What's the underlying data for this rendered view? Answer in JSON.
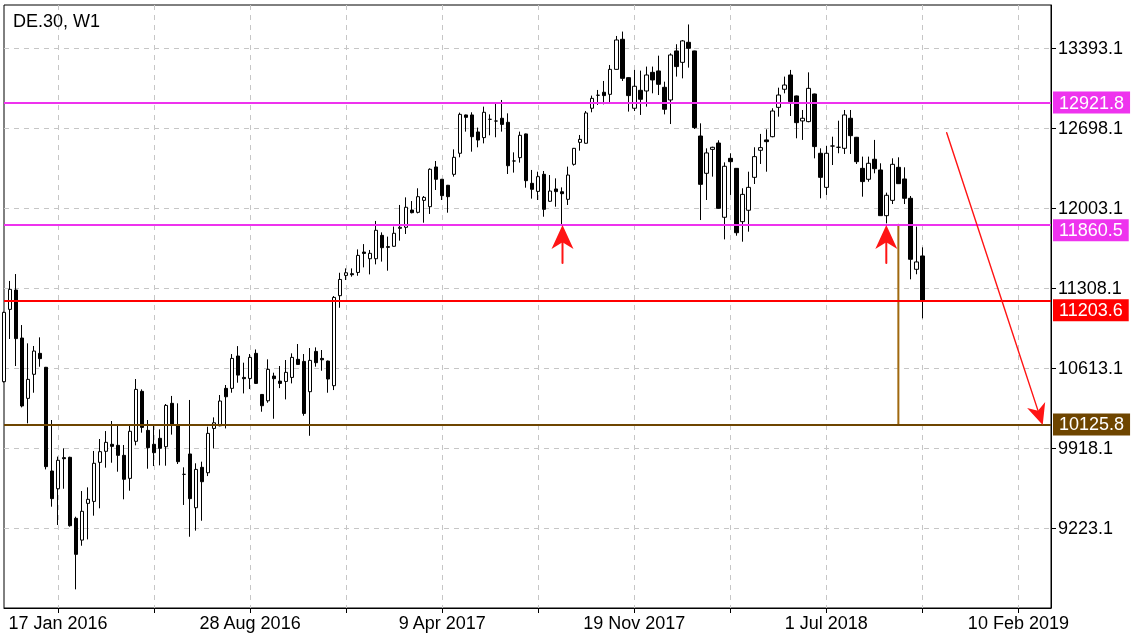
{
  "chart_data": {
    "type": "candlestick",
    "title": "DE.30, W1",
    "color": "#000000",
    "x": [
      "2015-11-15",
      "2015-11-22",
      "2015-11-29",
      "2015-12-06",
      "2015-12-13",
      "2015-12-20",
      "2015-12-27",
      "2016-01-03",
      "2016-01-10",
      "2016-01-17",
      "2016-01-24",
      "2016-01-31",
      "2016-02-07",
      "2016-02-14",
      "2016-02-21",
      "2016-02-28",
      "2016-03-06",
      "2016-03-13",
      "2016-03-20",
      "2016-03-27",
      "2016-04-03",
      "2016-04-10",
      "2016-04-17",
      "2016-04-24",
      "2016-05-01",
      "2016-05-08",
      "2016-05-15",
      "2016-05-22",
      "2016-05-29",
      "2016-06-05",
      "2016-06-12",
      "2016-06-19",
      "2016-06-26",
      "2016-07-03",
      "2016-07-10",
      "2016-07-17",
      "2016-07-24",
      "2016-07-31",
      "2016-08-07",
      "2016-08-14",
      "2016-08-21",
      "2016-08-28",
      "2016-09-04",
      "2016-09-11",
      "2016-09-18",
      "2016-09-25",
      "2016-10-02",
      "2016-10-09",
      "2016-10-16",
      "2016-10-23",
      "2016-10-30",
      "2016-11-06",
      "2016-11-13",
      "2016-11-20",
      "2016-11-27",
      "2016-12-04",
      "2016-12-11",
      "2016-12-18",
      "2016-12-25",
      "2017-01-01",
      "2017-01-08",
      "2017-01-15",
      "2017-01-22",
      "2017-01-29",
      "2017-02-05",
      "2017-02-12",
      "2017-02-19",
      "2017-02-26",
      "2017-03-05",
      "2017-03-12",
      "2017-03-19",
      "2017-03-26",
      "2017-04-02",
      "2017-04-09",
      "2017-04-16",
      "2017-04-23",
      "2017-04-30",
      "2017-05-07",
      "2017-05-14",
      "2017-05-21",
      "2017-05-28",
      "2017-06-04",
      "2017-06-11",
      "2017-06-18",
      "2017-06-25",
      "2017-07-02",
      "2017-07-09",
      "2017-07-16",
      "2017-07-23",
      "2017-07-30",
      "2017-08-06",
      "2017-08-13",
      "2017-08-20",
      "2017-08-27",
      "2017-09-03",
      "2017-09-10",
      "2017-09-17",
      "2017-09-24",
      "2017-10-01",
      "2017-10-08",
      "2017-10-15",
      "2017-10-22",
      "2017-10-29",
      "2017-11-05",
      "2017-11-12",
      "2017-11-19",
      "2017-11-26",
      "2017-12-03",
      "2017-12-10",
      "2017-12-17",
      "2017-12-24",
      "2017-12-31",
      "2018-01-07",
      "2018-01-14",
      "2018-01-21",
      "2018-01-28",
      "2018-02-04",
      "2018-02-11",
      "2018-02-18",
      "2018-02-25",
      "2018-03-04",
      "2018-03-11",
      "2018-03-18",
      "2018-03-25",
      "2018-04-01",
      "2018-04-08",
      "2018-04-15",
      "2018-04-22",
      "2018-04-29",
      "2018-05-06",
      "2018-05-13",
      "2018-05-20",
      "2018-05-27",
      "2018-06-03",
      "2018-06-10",
      "2018-06-17",
      "2018-06-24",
      "2018-07-01",
      "2018-07-08",
      "2018-07-15",
      "2018-07-22",
      "2018-07-29",
      "2018-08-05",
      "2018-08-12",
      "2018-08-19",
      "2018-08-26",
      "2018-09-02",
      "2018-09-09",
      "2018-09-16",
      "2018-09-23",
      "2018-09-30",
      "2018-10-07",
      "2018-10-14",
      "2018-10-21"
    ],
    "ohlc": [
      [
        10497,
        11105,
        10490,
        11099
      ],
      [
        11125,
        11372,
        10868,
        11299
      ],
      [
        11293,
        11432,
        10633,
        10871
      ],
      [
        10876,
        10989,
        10274,
        10286
      ],
      [
        10352,
        10830,
        10135,
        10517
      ],
      [
        10561,
        10807,
        10401,
        10763
      ],
      [
        10743,
        10882,
        10627,
        10697
      ],
      [
        10622,
        10625,
        9735,
        9759
      ],
      [
        9721,
        10164,
        9411,
        9481
      ],
      [
        9567,
        9846,
        9252,
        9814
      ],
      [
        9837,
        9918,
        9567,
        9828
      ],
      [
        9840,
        9845,
        9238,
        9246
      ],
      [
        9310,
        9324,
        8693,
        8997
      ],
      [
        9121,
        9547,
        9072,
        9371
      ],
      [
        9440,
        9579,
        9127,
        9475
      ],
      [
        9457,
        9895,
        9333,
        9788
      ],
      [
        9796,
        9999,
        9397,
        9889
      ],
      [
        9892,
        10068,
        9750,
        9970
      ],
      [
        9953,
        10155,
        9793,
        9935
      ],
      [
        9944,
        10121,
        9715,
        9857
      ],
      [
        9857,
        9947,
        9475,
        9649
      ],
      [
        9657,
        10112,
        9550,
        10066
      ],
      [
        9979,
        10520,
        9944,
        10430
      ],
      [
        10413,
        10430,
        10054,
        10100
      ],
      [
        10074,
        10164,
        9741,
        9924
      ],
      [
        9953,
        10115,
        9764,
        9880
      ],
      [
        10005,
        10083,
        9770,
        9918
      ],
      [
        9932,
        10303,
        9767,
        10291
      ],
      [
        10309,
        10373,
        10037,
        10118
      ],
      [
        10123,
        10309,
        9782,
        9802
      ],
      [
        9692,
        9753,
        9426,
        9692
      ],
      [
        9869,
        10338,
        9150,
        9481
      ],
      [
        9402,
        9788,
        9203,
        9735
      ],
      [
        9753,
        9802,
        9289,
        9628
      ],
      [
        9706,
        10106,
        9677,
        10048
      ],
      [
        10091,
        10187,
        9917,
        10140
      ],
      [
        10114,
        10381,
        10110,
        10329
      ],
      [
        10439,
        10468,
        10091,
        10366
      ],
      [
        10439,
        10737,
        10401,
        10699
      ],
      [
        10720,
        10806,
        10488,
        10554
      ],
      [
        10534,
        10662,
        10395,
        10523
      ],
      [
        10525,
        10737,
        10433,
        10708
      ],
      [
        10743,
        10777,
        10478,
        10482
      ],
      [
        10386,
        10390,
        10236,
        10288
      ],
      [
        10331,
        10691,
        10314,
        10604
      ],
      [
        10546,
        10575,
        10175,
        10523
      ],
      [
        10502,
        10633,
        10441,
        10482
      ],
      [
        10499,
        10685,
        10343,
        10578
      ],
      [
        10534,
        10743,
        10482,
        10708
      ],
      [
        10691,
        10824,
        10645,
        10647
      ],
      [
        10673,
        10737,
        10201,
        10221
      ],
      [
        10410,
        10789,
        10027,
        10682
      ],
      [
        10760,
        10795,
        10627,
        10662
      ],
      [
        10699,
        10772,
        10592,
        10687
      ],
      [
        10676,
        10680,
        10401,
        10520
      ],
      [
        10462,
        11241,
        10424,
        11229
      ],
      [
        11244,
        11443,
        11139,
        11385
      ],
      [
        11420,
        11481,
        11380,
        11443
      ],
      [
        11435,
        11481,
        11409,
        11426
      ],
      [
        11446,
        11646,
        11417,
        11594
      ],
      [
        11623,
        11692,
        11490,
        11611
      ],
      [
        11565,
        11641,
        11429,
        11612
      ],
      [
        11565,
        11893,
        11516,
        11812
      ],
      [
        11768,
        11794,
        11540,
        11661
      ],
      [
        11670,
        11757,
        11461,
        11664
      ],
      [
        11673,
        11844,
        11670,
        11786
      ],
      [
        11829,
        12032,
        11722,
        11838
      ],
      [
        11838,
        12098,
        11780,
        12012
      ],
      [
        11988,
        12066,
        11959,
        11965
      ],
      [
        11968,
        12177,
        11959,
        12104
      ],
      [
        12072,
        12110,
        11878,
        12098
      ],
      [
        12017,
        12350,
        11954,
        12342
      ],
      [
        12362,
        12414,
        12162,
        12255
      ],
      [
        12255,
        12258,
        12075,
        12113
      ],
      [
        12203,
        12206,
        11965,
        12104
      ],
      [
        12298,
        12515,
        12278,
        12446
      ],
      [
        12481,
        12834,
        12446,
        12819
      ],
      [
        12814,
        12817,
        12669,
        12793
      ],
      [
        12814,
        12837,
        12495,
        12625
      ],
      [
        12666,
        12704,
        12533,
        12596
      ],
      [
        12617,
        12886,
        12567,
        12837
      ],
      [
        12776,
        12819,
        12637,
        12776
      ],
      [
        12761,
        12921,
        12620,
        12761
      ],
      [
        12785,
        12944,
        12669,
        12732
      ],
      [
        12750,
        12828,
        12301,
        12373
      ],
      [
        12414,
        12489,
        12313,
        12414
      ],
      [
        12443,
        12669,
        12400,
        12637
      ],
      [
        12649,
        12652,
        12182,
        12243
      ],
      [
        12220,
        12336,
        12087,
        12168
      ],
      [
        12150,
        12321,
        12075,
        12278
      ],
      [
        12298,
        12327,
        11930,
        11994
      ],
      [
        12064,
        12292,
        12060,
        12153
      ],
      [
        12171,
        12263,
        12017,
        12148
      ],
      [
        12147,
        12185,
        11864,
        12130
      ],
      [
        12081,
        12365,
        12032,
        12292
      ],
      [
        12385,
        12527,
        12374,
        12524
      ],
      [
        12576,
        12640,
        12504,
        12602
      ],
      [
        12568,
        12848,
        12566,
        12831
      ],
      [
        12872,
        12982,
        12837,
        12958
      ],
      [
        12985,
        13031,
        12901,
        12985
      ],
      [
        13011,
        13109,
        12906,
        12982
      ],
      [
        12993,
        13248,
        12915,
        13210
      ],
      [
        13210,
        13500,
        13208,
        13465
      ],
      [
        13471,
        13538,
        13109,
        13132
      ],
      [
        13138,
        13141,
        12843,
        12982
      ],
      [
        12872,
        13205,
        12848,
        13063
      ],
      [
        13028,
        13199,
        12814,
        12950
      ],
      [
        13022,
        13234,
        12886,
        13161
      ],
      [
        13184,
        13234,
        13002,
        13118
      ],
      [
        13196,
        13329,
        12987,
        13080
      ],
      [
        13054,
        13103,
        12819,
        12863
      ],
      [
        12944,
        13349,
        12735,
        13335
      ],
      [
        13370,
        13428,
        13147,
        13234
      ],
      [
        13271,
        13465,
        13132,
        13457
      ],
      [
        13445,
        13600,
        13225,
        13393
      ],
      [
        13370,
        13372,
        12692,
        12704
      ],
      [
        12631,
        12741,
        11901,
        12211
      ],
      [
        12307,
        12524,
        12075,
        12484
      ],
      [
        12515,
        12538,
        12278,
        12533
      ],
      [
        12570,
        12594,
        12000,
        12003
      ],
      [
        11925,
        12402,
        11733,
        12368
      ],
      [
        12437,
        12481,
        12119,
        12408
      ],
      [
        12350,
        12353,
        11765,
        11791
      ],
      [
        11887,
        12177,
        11713,
        12124
      ],
      [
        11986,
        12321,
        11800,
        12185
      ],
      [
        12272,
        12533,
        12214,
        12452
      ],
      [
        12507,
        12649,
        12388,
        12530
      ],
      [
        12597,
        12689,
        12321,
        12582
      ],
      [
        12625,
        12872,
        12620,
        12848
      ],
      [
        12880,
        13051,
        12799,
        12987
      ],
      [
        13037,
        13147,
        13002,
        13074
      ],
      [
        13161,
        13205,
        12805,
        12930
      ],
      [
        12979,
        12982,
        12611,
        12747
      ],
      [
        12762,
        12857,
        12597,
        12785
      ],
      [
        12756,
        13184,
        12750,
        13045
      ],
      [
        12996,
        12999,
        12437,
        12539
      ],
      [
        12481,
        12524,
        12090,
        12272
      ],
      [
        12185,
        12544,
        12119,
        12481
      ],
      [
        12544,
        12625,
        12379,
        12544
      ],
      [
        12533,
        12764,
        12481,
        12533
      ],
      [
        12524,
        12857,
        12475,
        12814
      ],
      [
        12785,
        12857,
        12475,
        12634
      ],
      [
        12620,
        12623,
        12388,
        12408
      ],
      [
        12350,
        12452,
        12104,
        12235
      ],
      [
        12255,
        12452,
        12234,
        12394
      ],
      [
        12429,
        12597,
        12307,
        12347
      ],
      [
        12336,
        12394,
        11937,
        11939
      ],
      [
        11939,
        12139,
        11872,
        12116
      ],
      [
        12072,
        12437,
        12040,
        12385
      ],
      [
        12359,
        12446,
        12214,
        12217
      ],
      [
        12258,
        12359,
        12040,
        12090
      ],
      [
        12090,
        12110,
        11386,
        11560
      ],
      [
        11473,
        11844,
        11430,
        11537
      ],
      [
        11589,
        11664,
        11047,
        11204
      ]
    ],
    "series": [
      {
        "type": "line",
        "x": [
          "2018-09-23",
          "2018-09-23"
        ],
        "values": [
          11860.5,
          10125.8
        ],
        "color": "#a0690f"
      }
    ],
    "xlim": [
      "2015-11-15",
      "2019-03-20"
    ],
    "ylim": [
      8531,
      13769
    ],
    "xticks": [
      {
        "value": "2016-01-17",
        "label": "17 Jan 2016"
      },
      {
        "value": "2016-05-08",
        "label": null
      },
      {
        "value": "2016-08-28",
        "label": "28 Aug 2016"
      },
      {
        "value": "2016-12-18",
        "label": null
      },
      {
        "value": "2017-04-09",
        "label": "9 Apr 2017"
      },
      {
        "value": "2017-07-30",
        "label": null
      },
      {
        "value": "2017-11-19",
        "label": "19 Nov 2017"
      },
      {
        "value": "2018-03-11",
        "label": null
      },
      {
        "value": "2018-07-01",
        "label": "1 Jul 2018"
      },
      {
        "value": "2018-10-21",
        "label": null
      },
      {
        "value": "2019-02-10",
        "label": "10 Feb 2019"
      }
    ],
    "yticks": [
      9223.1,
      9918.1,
      10613.1,
      11308.1,
      12003.1,
      12698.1,
      13393.1
    ],
    "ref_lines": [
      {
        "axis": "y",
        "value": 12921.8,
        "label": "12921.8",
        "color": "#ee33ee"
      },
      {
        "axis": "y",
        "value": 11860.5,
        "label": "11860.5",
        "color": "#ee33ee"
      },
      {
        "axis": "y",
        "value": 11203.6,
        "label": "11203.6",
        "color": "#ff0000"
      },
      {
        "axis": "y",
        "value": 10125.8,
        "label": "10125.8",
        "color": "#6e4500"
      }
    ],
    "grid": true
  }
}
